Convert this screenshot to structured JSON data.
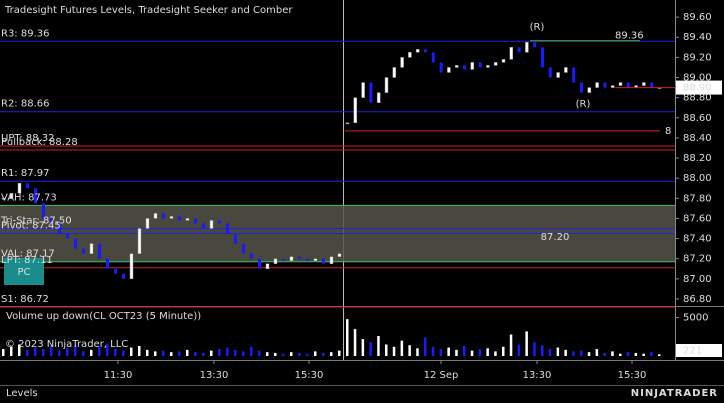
{
  "chart_data": {
    "type": "candlestick",
    "title": "Tradesight Futures Levels, Tradesight Seeker and Comber",
    "ylim": [
      86.74,
      89.77
    ],
    "yticks": [
      {
        "value": 89.6,
        "label": "89.60"
      },
      {
        "value": 89.4,
        "label": "89.40"
      },
      {
        "value": 89.2,
        "label": "89.20"
      },
      {
        "value": 89.0,
        "label": "89.00"
      },
      {
        "value": 88.8,
        "label": "88.80"
      },
      {
        "value": 88.6,
        "label": "88.60"
      },
      {
        "value": 88.4,
        "label": "88.40"
      },
      {
        "value": 88.2,
        "label": "88.20"
      },
      {
        "value": 88.0,
        "label": "88.00"
      },
      {
        "value": 87.8,
        "label": "87.80"
      },
      {
        "value": 87.6,
        "label": "87.60"
      },
      {
        "value": 87.4,
        "label": "87.40"
      },
      {
        "value": 87.2,
        "label": "87.20"
      },
      {
        "value": 87.0,
        "label": "87.00"
      },
      {
        "value": 86.8,
        "label": "86.80"
      }
    ],
    "up_color": "#ffffff",
    "down_color": "#1a1aff",
    "sessions": [
      {
        "closes": [
          87.8,
          87.85,
          87.95,
          87.9,
          87.75,
          87.6,
          87.55,
          87.45,
          87.4,
          87.3,
          87.25,
          87.35,
          87.2,
          87.1,
          87.05,
          87.0,
          87.25,
          87.5,
          87.6,
          87.65,
          87.6,
          87.62,
          87.58,
          87.6,
          87.55,
          87.5,
          87.58,
          87.55,
          87.45,
          87.35,
          87.25,
          87.2,
          87.1,
          87.15,
          87.2,
          87.18,
          87.22,
          87.2,
          87.18,
          87.2,
          87.15,
          87.22,
          87.25
        ],
        "volumes": [
          900,
          1200,
          1500,
          800,
          1100,
          900,
          1300,
          700,
          1000,
          1400,
          600,
          800,
          1200,
          1600,
          900,
          700,
          1100,
          1300,
          800,
          600,
          700,
          500,
          600,
          800,
          500,
          400,
          700,
          900,
          1100,
          800,
          600,
          1200,
          700,
          500,
          400,
          300,
          500,
          400,
          300,
          600,
          400,
          500,
          700
        ]
      },
      {
        "closes": [
          88.55,
          88.8,
          88.95,
          88.75,
          88.85,
          89.0,
          89.1,
          89.2,
          89.25,
          89.28,
          89.25,
          89.15,
          89.05,
          89.1,
          89.12,
          89.08,
          89.15,
          89.1,
          89.12,
          89.15,
          89.18,
          89.3,
          89.25,
          89.35,
          89.3,
          89.1,
          89.0,
          89.05,
          89.1,
          88.95,
          88.85,
          88.9,
          88.95,
          88.9,
          88.92,
          88.95,
          88.9,
          88.92,
          88.95,
          88.9,
          88.9
        ],
        "volumes": [
          4800,
          3500,
          2200,
          1800,
          2600,
          1500,
          1200,
          2000,
          1400,
          1000,
          2400,
          1200,
          900,
          1100,
          800,
          1300,
          700,
          900,
          1000,
          600,
          1200,
          2800,
          1500,
          3200,
          1800,
          1400,
          900,
          1100,
          800,
          600,
          700,
          500,
          900,
          400,
          600,
          300,
          500,
          400,
          300,
          500,
          221
        ]
      }
    ],
    "levels": [
      {
        "label": "R3: 89.36",
        "value": 89.36,
        "color": "#2222dd"
      },
      {
        "label": "R2: 88.66",
        "value": 88.66,
        "color": "#2222dd"
      },
      {
        "label": "UPT: 88.32",
        "value": 88.32,
        "color": "#cc2222"
      },
      {
        "label": "Pullback: 88.28",
        "value": 88.28,
        "color": "#cc2222"
      },
      {
        "label": "R1: 87.97",
        "value": 87.97,
        "color": "#2222dd"
      },
      {
        "label": "VAH: 87.73",
        "value": 87.73,
        "color": "#44bb66"
      },
      {
        "label": "Tri-Star: 87.50",
        "value": 87.5,
        "color": "#2222dd"
      },
      {
        "label": "Pivot: 87.45",
        "value": 87.45,
        "color": "#2222dd"
      },
      {
        "label": "VAL: 87.17",
        "value": 87.17,
        "color": "#44bb66"
      },
      {
        "label": "LPT: 87.11",
        "value": 87.11,
        "color": "#cc2222"
      },
      {
        "label": "S1: 86.72",
        "value": 86.72,
        "color": "#cc2222"
      }
    ],
    "value_area_color": "#55554a",
    "last_price": {
      "value": 88.9,
      "label": "88.90"
    },
    "target_label": "89.36",
    "red_level_label": "87.20",
    "red_marker": "8",
    "red_marker_value": 88.47,
    "reversal_labels": [
      "(R)",
      "(R)"
    ],
    "button": "PC",
    "volume_title": "Volume up down(CL OCT23 (5 Minute))",
    "volume_ylim": [
      0,
      6250
    ],
    "volume_yticks": [
      5000
    ],
    "last_volume": 221,
    "time_labels": [
      "11:30",
      "13:30",
      "15:30",
      "12 Sep",
      "13:30",
      "15:30"
    ],
    "copyright": "© 2023 NinjaTrader, LLC",
    "tab": "Levels",
    "brand": "NINJATRADER"
  }
}
